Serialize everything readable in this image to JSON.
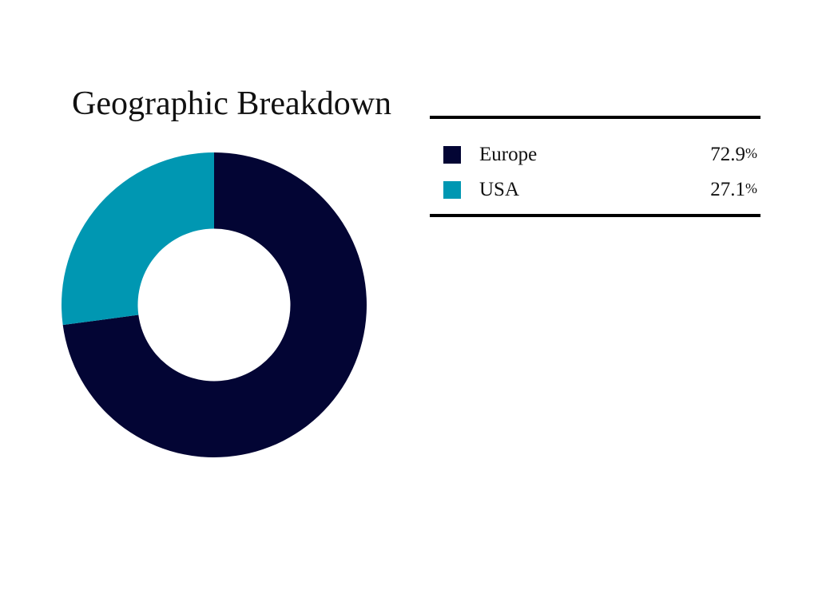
{
  "page": {
    "background": "#ffffff",
    "text_color": "#111111",
    "rule_color": "#000000"
  },
  "title": "Geographic Breakdown",
  "chart_data": {
    "type": "pie",
    "variant": "donut",
    "title": "Geographic Breakdown",
    "inner_radius_ratio": 0.5,
    "start_angle_deg": 0,
    "direction": "clockwise",
    "unit": "%",
    "legend_position": "right",
    "series": [
      {
        "label": "Europe",
        "value": 72.9,
        "color": "#030534"
      },
      {
        "label": "USA",
        "value": 27.1,
        "color": "#0097b2"
      }
    ]
  }
}
